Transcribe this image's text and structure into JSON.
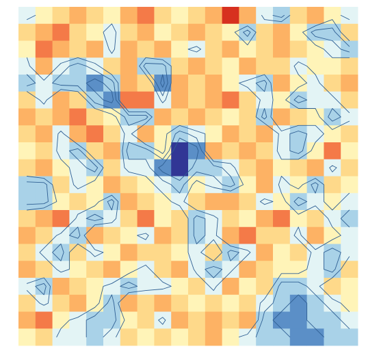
{
  "chart_data": {
    "type": "heatmap",
    "values": [
      [
        3,
        4,
        5,
        6,
        5,
        4,
        6,
        7,
        5,
        4,
        5,
        6,
        8,
        6,
        3,
        2,
        5,
        6,
        4,
        3
      ],
      [
        5,
        6,
        7,
        5,
        4,
        3,
        5,
        6,
        4,
        5,
        6,
        5,
        4,
        2,
        5,
        6,
        4,
        2,
        2,
        5
      ],
      [
        4,
        7,
        6,
        5,
        6,
        3,
        6,
        5,
        6,
        4,
        3,
        5,
        6,
        4,
        5,
        6,
        5,
        4,
        3,
        2
      ],
      [
        3,
        6,
        3,
        2,
        3,
        5,
        6,
        2,
        2,
        5,
        6,
        5,
        4,
        6,
        5,
        5,
        3,
        4,
        4,
        5
      ],
      [
        2,
        3,
        2,
        2,
        1,
        2,
        6,
        5,
        1,
        6,
        5,
        6,
        4,
        3,
        2,
        6,
        4,
        3,
        5,
        6
      ],
      [
        5,
        3,
        6,
        5,
        2,
        1,
        7,
        7,
        3,
        6,
        5,
        6,
        7,
        5,
        3,
        4,
        2,
        3,
        3,
        5
      ],
      [
        6,
        5,
        6,
        7,
        5,
        4,
        2,
        2,
        6,
        5,
        6,
        5,
        4,
        5,
        2,
        6,
        5,
        4,
        2,
        3
      ],
      [
        5,
        6,
        3,
        6,
        7,
        5,
        3,
        6,
        4,
        2,
        3,
        4,
        6,
        5,
        6,
        3,
        2,
        3,
        4,
        5
      ],
      [
        4,
        5,
        3,
        2,
        5,
        6,
        2,
        2,
        4,
        0,
        1,
        6,
        5,
        6,
        5,
        3,
        2,
        4,
        7,
        4
      ],
      [
        5,
        6,
        4,
        3,
        2,
        5,
        3,
        3,
        1,
        0,
        2,
        2,
        3,
        5,
        6,
        4,
        5,
        6,
        3,
        5
      ],
      [
        2,
        2,
        5,
        3,
        4,
        6,
        5,
        4,
        3,
        2,
        4,
        3,
        2,
        4,
        6,
        3,
        4,
        2,
        5,
        4
      ],
      [
        2,
        2,
        4,
        5,
        4,
        2,
        6,
        5,
        4,
        3,
        5,
        6,
        6,
        5,
        3,
        4,
        2,
        3,
        4,
        3
      ],
      [
        5,
        6,
        7,
        3,
        2,
        3,
        5,
        7,
        4,
        5,
        2,
        3,
        5,
        4,
        6,
        7,
        4,
        5,
        3,
        2
      ],
      [
        6,
        5,
        3,
        2,
        6,
        5,
        4,
        3,
        6,
        5,
        2,
        3,
        6,
        7,
        5,
        5,
        3,
        6,
        4,
        3
      ],
      [
        5,
        3,
        2,
        5,
        3,
        4,
        6,
        5,
        5,
        4,
        3,
        5,
        2,
        3,
        6,
        4,
        5,
        3,
        2,
        3
      ],
      [
        6,
        5,
        3,
        4,
        5,
        6,
        4,
        3,
        5,
        6,
        3,
        2,
        3,
        6,
        5,
        4,
        4,
        3,
        2,
        5
      ],
      [
        3,
        2,
        6,
        5,
        4,
        3,
        2,
        3,
        3,
        4,
        5,
        3,
        6,
        4,
        5,
        2,
        2,
        3,
        5,
        4
      ],
      [
        5,
        3,
        5,
        6,
        4,
        2,
        6,
        5,
        6,
        5,
        4,
        5,
        4,
        5,
        3,
        2,
        1,
        2,
        3,
        4
      ],
      [
        6,
        7,
        4,
        3,
        2,
        2,
        4,
        5,
        3,
        6,
        5,
        6,
        5,
        6,
        2,
        1,
        1,
        2,
        2,
        3
      ],
      [
        4,
        5,
        3,
        3,
        2,
        3,
        5,
        4,
        5,
        4,
        5,
        6,
        4,
        3,
        2,
        2,
        1,
        1,
        2,
        2
      ]
    ],
    "vlim": [
      0,
      8
    ],
    "colors": [
      "#313695",
      "#5b8fc7",
      "#a9d2e8",
      "#e3f4f5",
      "#fff4b8",
      "#fed98a",
      "#fdb264",
      "#f47a48",
      "#d7301f"
    ],
    "contour_levels": [
      1.5,
      2.5,
      3.5
    ],
    "contour_color": "#2f5f93"
  }
}
